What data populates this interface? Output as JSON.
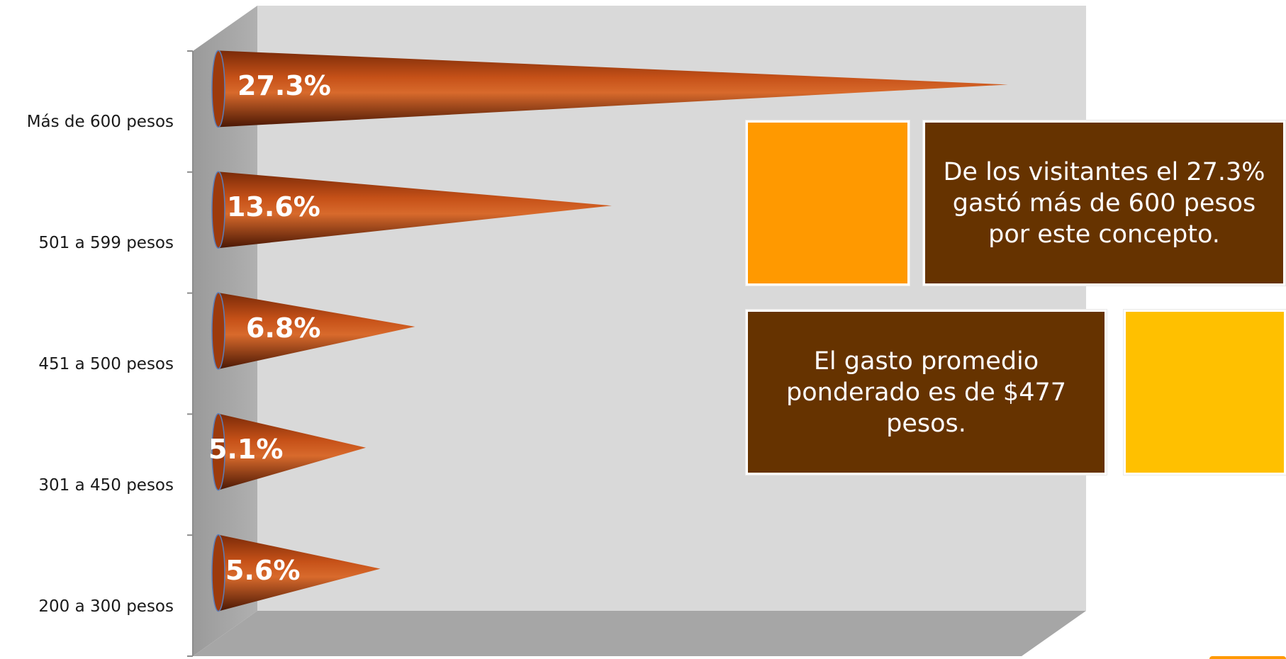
{
  "chart_data": {
    "type": "bar",
    "style": "3d-cone",
    "orientation": "horizontal",
    "categories": [
      "Más de 600 pesos",
      "501 a 599 pesos",
      "451 a 500 pesos",
      "301 a 450 pesos",
      "200 a 300 pesos"
    ],
    "values": [
      27.3,
      13.6,
      6.8,
      5.1,
      5.6
    ],
    "value_labels": [
      "27.3%",
      "13.6%",
      "6.8%",
      "5.1%",
      "5.6%"
    ],
    "unit": "%",
    "xlim": [
      0,
      30
    ],
    "grid": false,
    "legend": "none",
    "bar_color": "#b5400e"
  },
  "notes": {
    "top_text": "De los visitantes el 27.3% gastó más de 600 pesos por este concepto.",
    "bottom_text": "El gasto promedio ponderado es de $477 pesos."
  },
  "colors": {
    "cone": "#b5400e",
    "wall_back": "#d9d9d9",
    "wall_side": "#a6a6a6",
    "floor": "#a6a6a6",
    "note_brown": "#663300",
    "swatch_orange": "#ff9900",
    "swatch_yellow": "#ffc000"
  }
}
